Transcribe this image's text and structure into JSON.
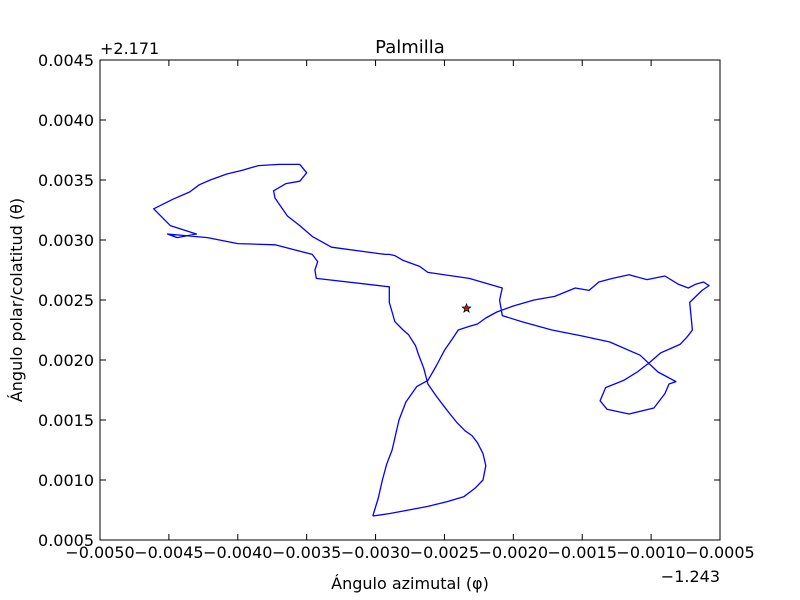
{
  "chart_data": {
    "type": "line",
    "title": "Palmilla",
    "xlabel": "Ángulo azimutal (φ)",
    "ylabel": "Ángulo polar/colatitud (θ)",
    "x_offset_label": "−1.243",
    "y_offset_label": "+2.171",
    "xlim": [
      -0.005,
      -0.0005
    ],
    "ylim": [
      0.0045,
      0.0005
    ],
    "y_inverted": true,
    "x_ticks": [
      "−0.0050",
      "−0.0045",
      "−0.0040",
      "−0.0035",
      "−0.0030",
      "−0.0025",
      "−0.0020",
      "−0.0015",
      "−0.0010",
      "−0.0005"
    ],
    "y_ticks": [
      "0.0005",
      "0.0010",
      "0.0015",
      "0.0020",
      "0.0025",
      "0.0030",
      "0.0035",
      "0.0040",
      "0.0045"
    ],
    "x_tick_values": [
      -0.005,
      -0.0045,
      -0.004,
      -0.0035,
      -0.003,
      -0.0025,
      -0.002,
      -0.0015,
      -0.001,
      -0.0005
    ],
    "y_tick_values": [
      0.0005,
      0.001,
      0.0015,
      0.002,
      0.0025,
      0.003,
      0.0035,
      0.004,
      0.0045
    ],
    "grid": false,
    "legend": "none",
    "series": [
      {
        "color": "#0000ff",
        "x": [
          -0.00302,
          -0.00298,
          -0.00295,
          -0.00292,
          -0.00288,
          -0.00283,
          -0.00278,
          -0.0027,
          -0.00262,
          -0.00256,
          -0.0025,
          -0.00244,
          -0.0024,
          -0.00232,
          -0.00226,
          -0.0022,
          -0.00212,
          -0.002,
          -0.00185,
          -0.0017,
          -0.00155,
          -0.00145,
          -0.00138,
          -0.00128,
          -0.00116,
          -0.00103,
          -0.0009,
          -0.0008,
          -0.00073,
          -0.00068,
          -0.00062,
          -0.00058,
          -0.00063,
          -0.00072,
          -0.00071,
          -0.0007,
          -0.00074,
          -0.00079,
          -0.00085,
          -0.00093,
          -0.00101,
          -0.0011,
          -0.0012,
          -0.00133,
          -0.00137,
          -0.00132,
          -0.00116,
          -0.00098,
          -0.0009,
          -0.00087,
          -0.00082,
          -0.00095,
          -0.00108,
          -0.0013,
          -0.0015,
          -0.00172,
          -0.00194,
          -0.00208,
          -0.0021,
          -0.00208,
          -0.00232,
          -0.00262,
          -0.00268,
          -0.0028,
          -0.00286,
          -0.0029,
          -0.00293,
          -0.00332,
          -0.00346,
          -0.00355,
          -0.00364,
          -0.0037,
          -0.00373,
          -0.00374,
          -0.00365,
          -0.00355,
          -0.0035,
          -0.00355,
          -0.0037,
          -0.00385,
          -0.00397,
          -0.00408,
          -0.0042,
          -0.00428,
          -0.00435,
          -0.00447,
          -0.00461,
          -0.00449,
          -0.0043,
          -0.00444,
          -0.00451,
          -0.00422,
          -0.004,
          -0.00373,
          -0.00346,
          -0.00342,
          -0.00344,
          -0.00343,
          -0.0029,
          -0.0029,
          -0.00288,
          -0.00286,
          -0.0028,
          -0.00276,
          -0.00271,
          -0.00269,
          -0.00265,
          -0.00262,
          -0.00256,
          -0.0025,
          -0.00246,
          -0.00241,
          -0.00235,
          -0.0023,
          -0.00226,
          -0.00222,
          -0.0022,
          -0.00222,
          -0.00228,
          -0.00236,
          -0.00248,
          -0.00262,
          -0.00276,
          -0.0029,
          -0.00302
        ],
        "y": [
          0.0007,
          0.00085,
          0.001,
          0.00113,
          0.00125,
          0.0015,
          0.00165,
          0.00178,
          0.00183,
          0.00195,
          0.00208,
          0.00218,
          0.00225,
          0.00228,
          0.0023,
          0.00235,
          0.0024,
          0.00245,
          0.0025,
          0.00253,
          0.0026,
          0.00258,
          0.00265,
          0.00268,
          0.00271,
          0.00267,
          0.0027,
          0.00263,
          0.0026,
          0.00263,
          0.00265,
          0.00262,
          0.00258,
          0.00248,
          0.00236,
          0.00225,
          0.00219,
          0.00213,
          0.0021,
          0.00206,
          0.00198,
          0.0019,
          0.00183,
          0.00177,
          0.00166,
          0.00159,
          0.00155,
          0.0016,
          0.00172,
          0.0018,
          0.00182,
          0.0019,
          0.00204,
          0.00215,
          0.0022,
          0.00225,
          0.00232,
          0.00237,
          0.0025,
          0.0026,
          0.00268,
          0.00273,
          0.00278,
          0.00283,
          0.00287,
          0.00288,
          0.00288,
          0.00294,
          0.00303,
          0.00312,
          0.0032,
          0.0033,
          0.00335,
          0.00341,
          0.00347,
          0.00349,
          0.00356,
          0.00363,
          0.00363,
          0.00362,
          0.00358,
          0.00355,
          0.0035,
          0.00346,
          0.0034,
          0.00334,
          0.00326,
          0.00312,
          0.00305,
          0.00302,
          0.00305,
          0.00302,
          0.00297,
          0.00296,
          0.00288,
          0.00282,
          0.00275,
          0.00268,
          0.00261,
          0.00248,
          0.0024,
          0.00232,
          0.00225,
          0.00221,
          0.00212,
          0.00205,
          0.00193,
          0.0018,
          0.0017,
          0.00161,
          0.00155,
          0.00148,
          0.00141,
          0.00137,
          0.00131,
          0.00122,
          0.00112,
          0.001,
          0.00093,
          0.00086,
          0.00082,
          0.00078,
          0.00075,
          0.00072,
          0.0007
        ]
      }
    ],
    "marker": {
      "x": -0.00234,
      "y": 0.00243,
      "symbol": "star",
      "color": "#b22222"
    }
  }
}
